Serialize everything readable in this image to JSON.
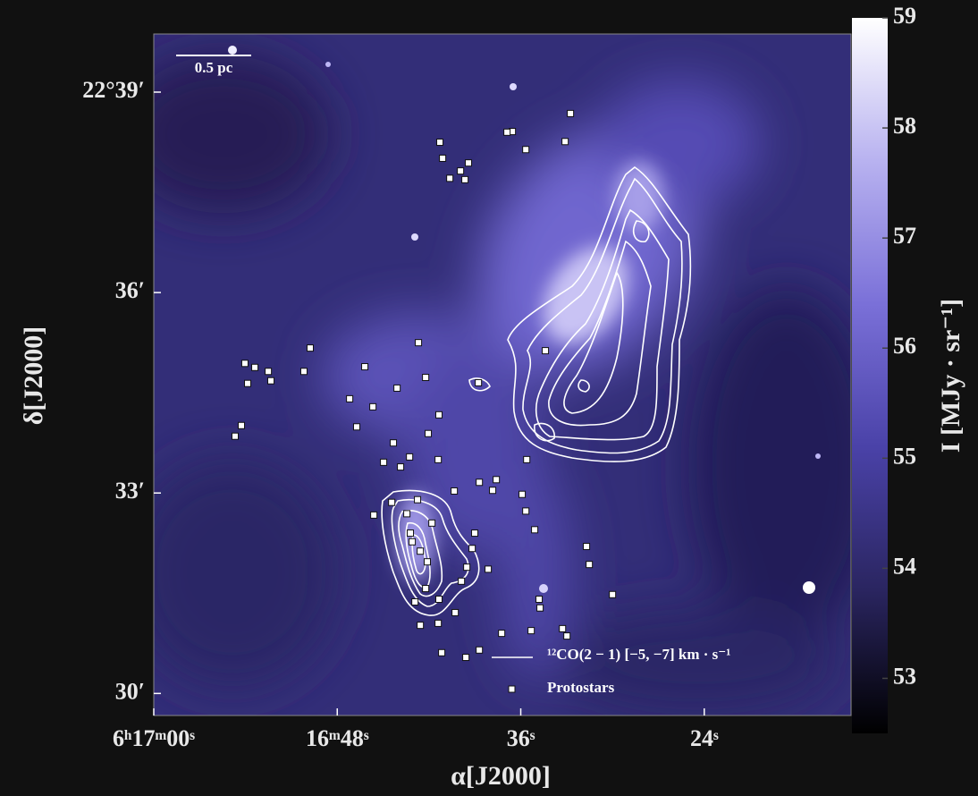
{
  "chart_data": {
    "type": "scatter",
    "xlabel": "α[J2000]",
    "ylabel": "δ[J2000]",
    "xlim": [
      60,
      14.4
    ],
    "ylim": [
      29.67,
      39.87
    ],
    "xticks": [
      {
        "value": 60,
        "label": "6ʰ17ᵐ00ˢ"
      },
      {
        "value": 48,
        "label": "16ᵐ48ˢ"
      },
      {
        "value": 36,
        "label": "36ˢ"
      },
      {
        "value": 24,
        "label": "24ˢ"
      }
    ],
    "yticks": [
      {
        "value": 39,
        "label": "22°39′"
      },
      {
        "value": 36,
        "label": "36′"
      },
      {
        "value": 33,
        "label": "33′"
      },
      {
        "value": 30,
        "label": "30′"
      }
    ],
    "scale_bar": "0.5 pc",
    "contour": {
      "name": "¹²CO(2 − 1) [−5, −7] km · s⁻¹",
      "color": "#ffffff"
    },
    "series": [
      {
        "name": "Protostars",
        "color": "#ffffff",
        "x": [
          32.75,
          33.1,
          36.55,
          36.9,
          35.67,
          41.29,
          41.11,
          39.42,
          39.94,
          40.64,
          39.65,
          42.69,
          49.77,
          54.04,
          53.39,
          52.51,
          53.86,
          52.34,
          50.18,
          46.2,
          42.22,
          44.09,
          38.77,
          34.39,
          47.19,
          45.67,
          46.73,
          54.27,
          54.68,
          41.35,
          42.05,
          44.33,
          43.27,
          44.97,
          43.86,
          41.4,
          35.61,
          38.71,
          37.6,
          40.35,
          37.84,
          35.91,
          44.44,
          42.75,
          45.61,
          43.45,
          35.67,
          41.81,
          39.01,
          35.09,
          43.22,
          43.1,
          42.57,
          39.18,
          31.7,
          42.11,
          31.52,
          39.53,
          38.13,
          39.88,
          42.22,
          34.8,
          34.74,
          30.0,
          42.92,
          41.35,
          40.29,
          42.57,
          41.4,
          37.25,
          35.32,
          33.27,
          32.98,
          38.71,
          41.17,
          39.59
        ],
        "y": [
          38.68,
          38.26,
          38.41,
          38.4,
          38.14,
          38.25,
          38.01,
          37.94,
          37.82,
          37.71,
          37.69,
          35.25,
          35.17,
          34.94,
          34.88,
          34.82,
          34.64,
          34.68,
          34.82,
          34.89,
          34.73,
          34.57,
          34.65,
          35.13,
          34.41,
          34.29,
          33.99,
          34.01,
          33.85,
          34.17,
          33.89,
          33.75,
          33.54,
          33.46,
          33.39,
          33.5,
          33.5,
          33.16,
          33.2,
          33.03,
          33.04,
          32.98,
          32.86,
          32.9,
          32.67,
          32.69,
          32.73,
          32.55,
          32.4,
          32.45,
          32.4,
          32.27,
          32.13,
          32.17,
          32.2,
          31.97,
          31.93,
          31.89,
          31.86,
          31.68,
          31.57,
          31.41,
          31.28,
          31.48,
          31.37,
          31.41,
          31.21,
          31.02,
          31.05,
          30.9,
          30.94,
          30.97,
          30.86,
          30.65,
          30.61,
          30.54
        ]
      }
    ],
    "colorbar": {
      "label": "I [MJy · sr⁻¹]",
      "clim": [
        52.5,
        59
      ],
      "ticks": [
        53,
        54,
        55,
        56,
        57,
        58,
        59
      ],
      "colors": [
        "#000000",
        "#2a2560",
        "#4a42a8",
        "#7a70d8",
        "#b8b2f0",
        "#ffffff"
      ]
    }
  }
}
